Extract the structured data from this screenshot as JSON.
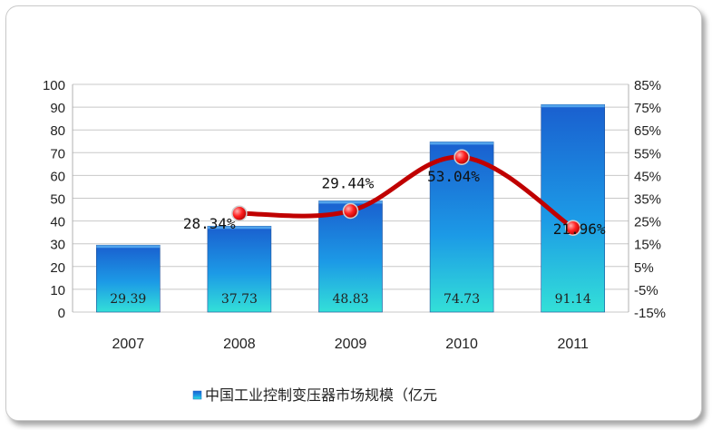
{
  "chart_data": {
    "type": "bar",
    "categories": [
      "2007",
      "2008",
      "2009",
      "2010",
      "2011"
    ],
    "series": [
      {
        "name": "中国工业控制变压器市场规模（亿元",
        "type": "bar",
        "axis": "left",
        "values": [
          29.39,
          37.73,
          48.83,
          74.73,
          91.14
        ],
        "labels": [
          "29.39",
          "37.73",
          "48.83",
          "74.73",
          "91.14"
        ]
      },
      {
        "type": "line",
        "axis": "right",
        "x": [
          "2008",
          "2009",
          "2010",
          "2011"
        ],
        "values": [
          28.34,
          29.44,
          53.04,
          21.96
        ],
        "labels": [
          "28.34%",
          "29.44%",
          "53.04%",
          "21.96%"
        ]
      }
    ],
    "ylim": [
      0,
      100
    ],
    "yticks": [
      "0",
      "10",
      "20",
      "30",
      "40",
      "50",
      "60",
      "70",
      "80",
      "90",
      "100"
    ],
    "y2lim": [
      -15,
      85
    ],
    "y2ticks": [
      "-15%",
      "-5%",
      "5%",
      "15%",
      "25%",
      "35%",
      "45%",
      "55%",
      "65%",
      "75%",
      "85%"
    ],
    "grid": true,
    "legend_position": "bottom"
  },
  "colors": {
    "bar_top": "#1565c8",
    "bar_bottom": "#2fd8d8",
    "line": "#c00000",
    "marker": "#ff2a2a"
  }
}
